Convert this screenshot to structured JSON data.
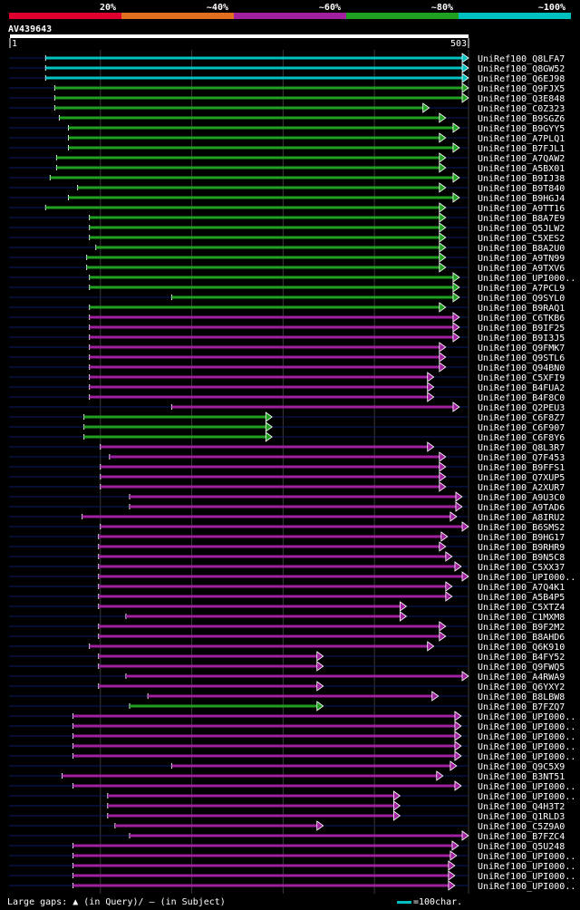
{
  "page": {
    "query_id": "AV439643",
    "footer_gaps_text": "Large gaps: ▲ (in Query)/ — (in Subject)",
    "footer_scale_text": "=100char."
  },
  "colors": {
    "background": "#000000",
    "cyan": "#00c0c0",
    "green": "#20a020",
    "purple": "#a020a0",
    "red": "#e00030",
    "orange": "#e07020",
    "axis": "#ffffff",
    "subject_line": "#0a1a60"
  },
  "chart_data": {
    "type": "alignment-overview",
    "title": "AV439643",
    "query_length": 503,
    "axis_start_label": "1",
    "axis_end_label": "503",
    "identity_bins": [
      {
        "label": "20%",
        "color": "#e00030"
      },
      {
        "label": "~40%",
        "color": "#e07020"
      },
      {
        "label": "~60%",
        "color": "#a020a0"
      },
      {
        "label": "~80%",
        "color": "#20a020"
      },
      {
        "label": "~100%",
        "color": "#00c0c0"
      }
    ],
    "hits": [
      {
        "name": "UniRef100_Q8LFA7",
        "bin": "~100%",
        "start": 40,
        "end": 503
      },
      {
        "name": "UniRef100_Q8GW52",
        "bin": "~100%",
        "start": 40,
        "end": 503
      },
      {
        "name": "UniRef100_Q6EJ98",
        "bin": "~100%",
        "start": 40,
        "end": 503
      },
      {
        "name": "UniRef100_Q9FJX5",
        "bin": "~80%",
        "start": 50,
        "end": 503
      },
      {
        "name": "UniRef100_Q3E848",
        "bin": "~80%",
        "start": 50,
        "end": 503
      },
      {
        "name": "UniRef100_C0Z323",
        "bin": "~80%",
        "start": 50,
        "end": 460
      },
      {
        "name": "UniRef100_B9SGZ6",
        "bin": "~80%",
        "start": 55,
        "end": 478
      },
      {
        "name": "UniRef100_B9GYY5",
        "bin": "~80%",
        "start": 65,
        "end": 493
      },
      {
        "name": "UniRef100_A7PLQ1",
        "bin": "~80%",
        "start": 65,
        "end": 478
      },
      {
        "name": "UniRef100_B7FJL1",
        "bin": "~80%",
        "start": 65,
        "end": 493
      },
      {
        "name": "UniRef100_A7QAW2",
        "bin": "~80%",
        "start": 52,
        "end": 478
      },
      {
        "name": "UniRef100_A5BX01",
        "bin": "~80%",
        "start": 52,
        "end": 478
      },
      {
        "name": "UniRef100_B9IJ38",
        "bin": "~80%",
        "start": 45,
        "end": 493
      },
      {
        "name": "UniRef100_B9T840",
        "bin": "~80%",
        "start": 75,
        "end": 478
      },
      {
        "name": "UniRef100_B9HGJ4",
        "bin": "~80%",
        "start": 65,
        "end": 493
      },
      {
        "name": "UniRef100_A9TT16",
        "bin": "~80%",
        "start": 40,
        "end": 478
      },
      {
        "name": "UniRef100_B8A7E9",
        "bin": "~80%",
        "start": 88,
        "end": 478
      },
      {
        "name": "UniRef100_Q5JLW2",
        "bin": "~80%",
        "start": 88,
        "end": 478
      },
      {
        "name": "UniRef100_C5XES2",
        "bin": "~80%",
        "start": 88,
        "end": 478
      },
      {
        "name": "UniRef100_B8A2U0",
        "bin": "~80%",
        "start": 95,
        "end": 478
      },
      {
        "name": "UniRef100_A9TN99",
        "bin": "~80%",
        "start": 85,
        "end": 478
      },
      {
        "name": "UniRef100_A9TXV6",
        "bin": "~80%",
        "start": 85,
        "end": 478
      },
      {
        "name": "UniRef100_UPI000..",
        "bin": "~80%",
        "start": 88,
        "end": 493
      },
      {
        "name": "UniRef100_A7PCL9",
        "bin": "~80%",
        "start": 88,
        "end": 493
      },
      {
        "name": "UniRef100_Q9SYL0",
        "bin": "~80%",
        "start": 178,
        "end": 493
      },
      {
        "name": "UniRef100_B9RAQ1",
        "bin": "~80%",
        "start": 88,
        "end": 478
      },
      {
        "name": "UniRef100_C6TKB6",
        "bin": "~60%",
        "start": 88,
        "end": 493
      },
      {
        "name": "UniRef100_B9IF25",
        "bin": "~60%",
        "start": 88,
        "end": 493
      },
      {
        "name": "UniRef100_B9I3J5",
        "bin": "~60%",
        "start": 88,
        "end": 493
      },
      {
        "name": "UniRef100_Q9FMK7",
        "bin": "~60%",
        "start": 88,
        "end": 478
      },
      {
        "name": "UniRef100_Q9STL6",
        "bin": "~60%",
        "start": 88,
        "end": 478
      },
      {
        "name": "UniRef100_Q94BN0",
        "bin": "~60%",
        "start": 88,
        "end": 478
      },
      {
        "name": "UniRef100_C5XFI9",
        "bin": "~60%",
        "start": 88,
        "end": 465
      },
      {
        "name": "UniRef100_B4FUA2",
        "bin": "~60%",
        "start": 88,
        "end": 465
      },
      {
        "name": "UniRef100_B4F8C0",
        "bin": "~60%",
        "start": 88,
        "end": 465
      },
      {
        "name": "UniRef100_Q2PEU3",
        "bin": "~60%",
        "start": 178,
        "end": 493
      },
      {
        "name": "UniRef100_C6F8Z7",
        "bin": "~80%",
        "start": 82,
        "end": 288
      },
      {
        "name": "UniRef100_C6F907",
        "bin": "~80%",
        "start": 82,
        "end": 288
      },
      {
        "name": "UniRef100_C6F8Y6",
        "bin": "~80%",
        "start": 82,
        "end": 288
      },
      {
        "name": "UniRef100_Q8L3R7",
        "bin": "~60%",
        "start": 100,
        "end": 465
      },
      {
        "name": "UniRef100_Q7F453",
        "bin": "~60%",
        "start": 110,
        "end": 478
      },
      {
        "name": "UniRef100_B9FFS1",
        "bin": "~60%",
        "start": 100,
        "end": 478
      },
      {
        "name": "UniRef100_Q7XUP5",
        "bin": "~60%",
        "start": 100,
        "end": 478
      },
      {
        "name": "UniRef100_A2XUR7",
        "bin": "~60%",
        "start": 100,
        "end": 478
      },
      {
        "name": "UniRef100_A9U3C0",
        "bin": "~60%",
        "start": 132,
        "end": 496
      },
      {
        "name": "UniRef100_A9TAD6",
        "bin": "~60%",
        "start": 132,
        "end": 496
      },
      {
        "name": "UniRef100_A8IRU2",
        "bin": "~60%",
        "start": 80,
        "end": 490
      },
      {
        "name": "UniRef100_B6SMS2",
        "bin": "~60%",
        "start": 100,
        "end": 503
      },
      {
        "name": "UniRef100_B9HG17",
        "bin": "~60%",
        "start": 98,
        "end": 480
      },
      {
        "name": "UniRef100_B9RHR9",
        "bin": "~60%",
        "start": 98,
        "end": 478
      },
      {
        "name": "UniRef100_B9N5C8",
        "bin": "~60%",
        "start": 98,
        "end": 485
      },
      {
        "name": "UniRef100_C5XX37",
        "bin": "~60%",
        "start": 98,
        "end": 495
      },
      {
        "name": "UniRef100_UPI000..",
        "bin": "~60%",
        "start": 98,
        "end": 503
      },
      {
        "name": "UniRef100_A7Q4K1",
        "bin": "~60%",
        "start": 98,
        "end": 485
      },
      {
        "name": "UniRef100_A5B4P5",
        "bin": "~60%",
        "start": 98,
        "end": 485
      },
      {
        "name": "UniRef100_C5XTZ4",
        "bin": "~60%",
        "start": 98,
        "end": 435
      },
      {
        "name": "UniRef100_C1MXM8",
        "bin": "~60%",
        "start": 128,
        "end": 435
      },
      {
        "name": "UniRef100_B9F2M2",
        "bin": "~60%",
        "start": 98,
        "end": 478
      },
      {
        "name": "UniRef100_B8AHD6",
        "bin": "~60%",
        "start": 98,
        "end": 478
      },
      {
        "name": "UniRef100_Q6K910",
        "bin": "~60%",
        "start": 88,
        "end": 465
      },
      {
        "name": "UniRef100_B4FY52",
        "bin": "~60%",
        "start": 98,
        "end": 344
      },
      {
        "name": "UniRef100_Q9FWQ5",
        "bin": "~60%",
        "start": 98,
        "end": 344
      },
      {
        "name": "UniRef100_A4RWA9",
        "bin": "~60%",
        "start": 128,
        "end": 503
      },
      {
        "name": "UniRef100_Q6YXY2",
        "bin": "~60%",
        "start": 98,
        "end": 344
      },
      {
        "name": "UniRef100_B8LBW8",
        "bin": "~60%",
        "start": 152,
        "end": 470
      },
      {
        "name": "UniRef100_B7FZQ7",
        "bin": "~80%",
        "start": 132,
        "end": 344
      },
      {
        "name": "UniRef100_UPI000..",
        "bin": "~60%",
        "start": 70,
        "end": 495
      },
      {
        "name": "UniRef100_UPI000..",
        "bin": "~60%",
        "start": 70,
        "end": 495
      },
      {
        "name": "UniRef100_UPI000..",
        "bin": "~60%",
        "start": 70,
        "end": 495
      },
      {
        "name": "UniRef100_UPI000..",
        "bin": "~60%",
        "start": 70,
        "end": 495
      },
      {
        "name": "UniRef100_UPI000..",
        "bin": "~60%",
        "start": 70,
        "end": 495
      },
      {
        "name": "UniRef100_Q9C5X9",
        "bin": "~60%",
        "start": 178,
        "end": 490
      },
      {
        "name": "UniRef100_B3NT51",
        "bin": "~60%",
        "start": 58,
        "end": 475
      },
      {
        "name": "UniRef100_UPI000..",
        "bin": "~60%",
        "start": 70,
        "end": 495
      },
      {
        "name": "UniRef100_UPI000..",
        "bin": "~60%",
        "start": 108,
        "end": 428
      },
      {
        "name": "UniRef100_Q4H3T2",
        "bin": "~60%",
        "start": 108,
        "end": 428
      },
      {
        "name": "UniRef100_Q1RLD3",
        "bin": "~60%",
        "start": 108,
        "end": 428
      },
      {
        "name": "UniRef100_C5Z9A0",
        "bin": "~60%",
        "start": 116,
        "end": 344
      },
      {
        "name": "UniRef100_B7FZC4",
        "bin": "~60%",
        "start": 132,
        "end": 503
      },
      {
        "name": "UniRef100_Q5U248",
        "bin": "~60%",
        "start": 70,
        "end": 492
      },
      {
        "name": "UniRef100_UPI000..",
        "bin": "~60%",
        "start": 70,
        "end": 490
      },
      {
        "name": "UniRef100_UPI000..",
        "bin": "~60%",
        "start": 70,
        "end": 488
      },
      {
        "name": "UniRef100_UPI000..",
        "bin": "~60%",
        "start": 70,
        "end": 488
      },
      {
        "name": "UniRef100_UPI000..",
        "bin": "~60%",
        "start": 70,
        "end": 488
      }
    ]
  }
}
